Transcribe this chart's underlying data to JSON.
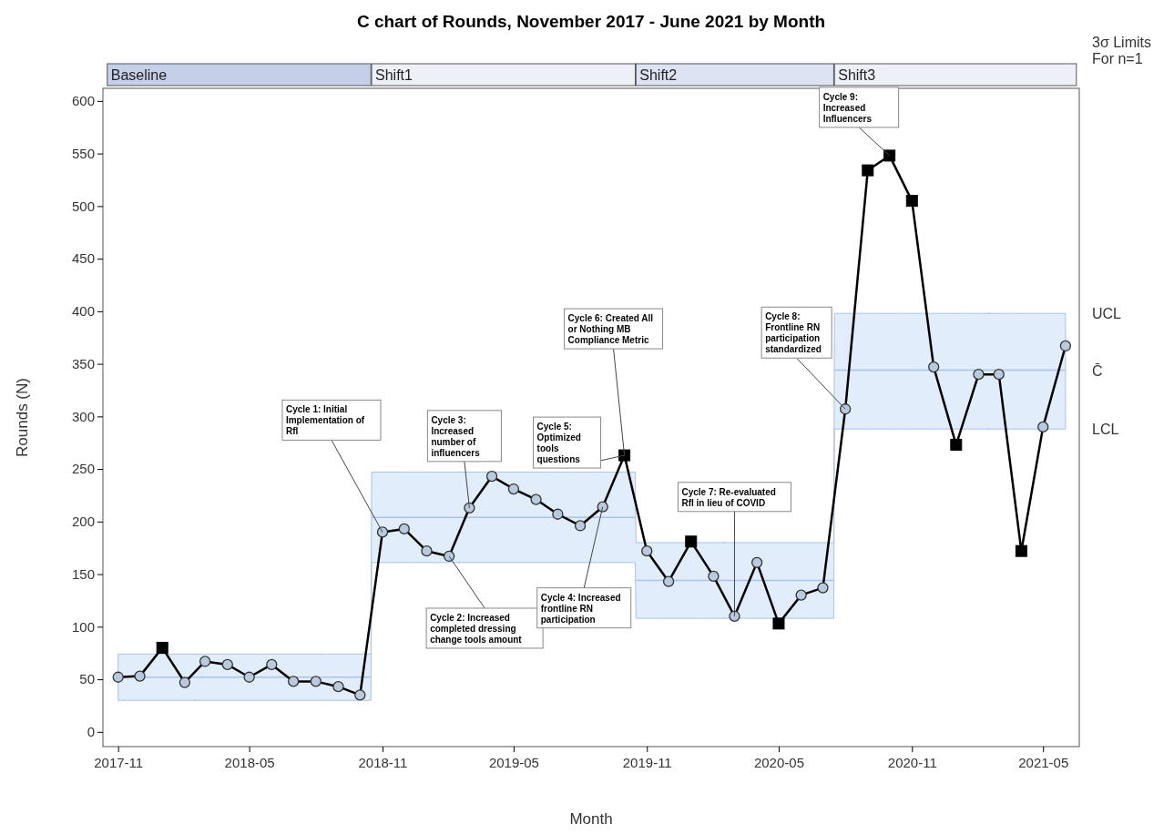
{
  "chart_data": {
    "type": "line",
    "title": "C chart of Rounds, November 2017 - June 2021 by Month",
    "xlabel": "Month",
    "ylabel": "Rounds (N)",
    "x": [
      "2017-11",
      "2017-12",
      "2018-01",
      "2018-02",
      "2018-03",
      "2018-04",
      "2018-05",
      "2018-06",
      "2018-07",
      "2018-08",
      "2018-09",
      "2018-10",
      "2018-11",
      "2018-12",
      "2019-01",
      "2019-02",
      "2019-03",
      "2019-04",
      "2019-05",
      "2019-06",
      "2019-07",
      "2019-08",
      "2019-09",
      "2019-10",
      "2019-11",
      "2019-12",
      "2020-01",
      "2020-02",
      "2020-03",
      "2020-04",
      "2020-05",
      "2020-06",
      "2020-07",
      "2020-08",
      "2020-09",
      "2020-10",
      "2020-11",
      "2020-12",
      "2021-01",
      "2021-02",
      "2021-03",
      "2021-04",
      "2021-05",
      "2021-06"
    ],
    "xlim": [
      "2017-10-11",
      "2021-06-20"
    ],
    "xticks": [
      "2017-11",
      "2018-05",
      "2018-11",
      "2019-05",
      "2019-11",
      "2020-05",
      "2020-11",
      "2021-05"
    ],
    "ylim": [
      -14,
      612
    ],
    "yticks": [
      0,
      50,
      100,
      150,
      200,
      250,
      300,
      350,
      400,
      450,
      500,
      550,
      600
    ],
    "grid": false,
    "legend": false,
    "series": [
      {
        "type": "step",
        "name": "C̄",
        "color": "#a9c3e6",
        "values": [
          52,
          52,
          52,
          52,
          52,
          52,
          52,
          52,
          52,
          52,
          52,
          52,
          204,
          204,
          204,
          204,
          204,
          204,
          204,
          204,
          204,
          204,
          204,
          204,
          144,
          144,
          144,
          144,
          144,
          144,
          144,
          144,
          144,
          344,
          344,
          344,
          344,
          344,
          344,
          344,
          344,
          344,
          344,
          344
        ],
        "lower": [
          30,
          30,
          30,
          30,
          30,
          30,
          30,
          30,
          30,
          30,
          30,
          30,
          161,
          161,
          161,
          161,
          161,
          161,
          161,
          161,
          161,
          161,
          161,
          161,
          108,
          108,
          108,
          108,
          108,
          108,
          108,
          108,
          108,
          288,
          288,
          288,
          288,
          288,
          288,
          288,
          288,
          288,
          288,
          288
        ],
        "upper": [
          74,
          74,
          74,
          74,
          74,
          74,
          74,
          74,
          74,
          74,
          74,
          74,
          247,
          247,
          247,
          247,
          247,
          247,
          247,
          247,
          247,
          247,
          247,
          247,
          180,
          180,
          180,
          180,
          180,
          180,
          180,
          180,
          180,
          398,
          398,
          398,
          398,
          398,
          398,
          398,
          398,
          398,
          398,
          398
        ]
      },
      {
        "color": "#000000",
        "marker": "none",
        "values": [
          52,
          53,
          80,
          47,
          67,
          64,
          52,
          64,
          48,
          48,
          43,
          35,
          190,
          193,
          172,
          167,
          213,
          243,
          231,
          221,
          207,
          196,
          214,
          263,
          172,
          143,
          181,
          148,
          110,
          161,
          103,
          130,
          137,
          307,
          534,
          548,
          505,
          347,
          273,
          340,
          340,
          172,
          290,
          367
        ]
      },
      {
        "type": "scatter",
        "color": "#b9c9de",
        "marker": "circle",
        "values": [
          52,
          53,
          null,
          47,
          67,
          64,
          52,
          64,
          48,
          48,
          43,
          35,
          190,
          193,
          172,
          167,
          213,
          243,
          231,
          221,
          207,
          196,
          214,
          null,
          172,
          143,
          null,
          148,
          110,
          161,
          null,
          130,
          137,
          307,
          null,
          null,
          null,
          347,
          null,
          340,
          340,
          null,
          290,
          367
        ]
      },
      {
        "type": "scatter",
        "color": "#000000",
        "marker": "square",
        "values": [
          null,
          null,
          80,
          null,
          null,
          null,
          null,
          null,
          null,
          null,
          null,
          null,
          null,
          null,
          null,
          null,
          null,
          null,
          null,
          null,
          null,
          null,
          null,
          263,
          null,
          null,
          181,
          null,
          null,
          null,
          103,
          null,
          null,
          null,
          534,
          548,
          505,
          null,
          273,
          null,
          null,
          172,
          null,
          null
        ]
      }
    ],
    "annotations": [
      {
        "text": "Cycle 1: Initial Implementation of RfI",
        "x": "2018-11",
        "y": 190
      },
      {
        "text": "Cycle 2: Increased completed dressing change tools amount",
        "x": "2019-02",
        "y": 167
      },
      {
        "text": "Cycle 3: Increased number of influencers",
        "x": "2019-03",
        "y": 213
      },
      {
        "text": "Cycle 4: Increased frontline RN participation",
        "x": "2019-09",
        "y": 214
      },
      {
        "text": "Cycle 5: Optimized tools questions",
        "x": "2019-10",
        "y": 263
      },
      {
        "text": "Cycle 6: Created All or Nothing MB Compliance Metric",
        "x": "2019-10",
        "y": 263
      },
      {
        "text": "Cycle 7: Re-evaluated RfI in lieu of COVID",
        "x": "2020-03",
        "y": 110
      },
      {
        "text": "Cycle 8: Frontline RN participation standardized",
        "x": "2020-08",
        "y": 307
      },
      {
        "text": "Cycle 9: Increased Influencers",
        "x": "2020-10",
        "y": 548
      },
      "Baseline",
      "Shift1",
      "Shift2",
      "Shift3",
      "3σ Limits For n=1",
      "UCL",
      "LCL"
    ]
  }
}
